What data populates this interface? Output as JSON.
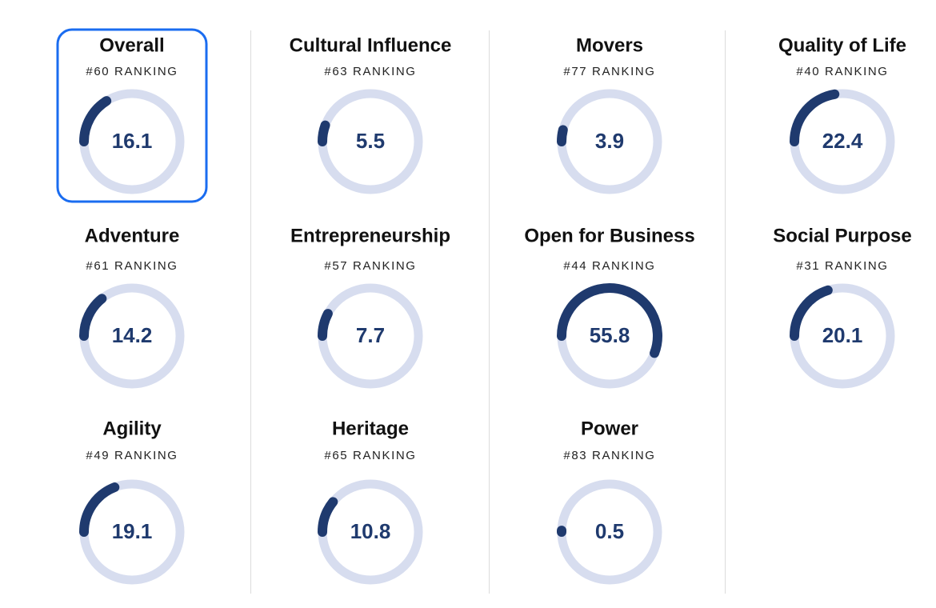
{
  "range": [
    0,
    100
  ],
  "cards": [
    {
      "title": "Overall",
      "ranking": "#60 RANKING",
      "score": 16.1
    },
    {
      "title": "Cultural Influence",
      "ranking": "#63 RANKING",
      "score": 5.5
    },
    {
      "title": "Movers",
      "ranking": "#77 RANKING",
      "score": 3.9
    },
    {
      "title": "Quality of Life",
      "ranking": "#40 RANKING",
      "score": 22.4
    },
    {
      "title": "Adventure",
      "ranking": "#61 RANKING",
      "score": 14.2
    },
    {
      "title": "Entrepreneurship",
      "ranking": "#57 RANKING",
      "score": 7.7
    },
    {
      "title": "Open for Business",
      "ranking": "#44 RANKING",
      "score": 55.8
    },
    {
      "title": "Social Purpose",
      "ranking": "#31 RANKING",
      "score": 20.1
    },
    {
      "title": "Agility",
      "ranking": "#49 RANKING",
      "score": 19.1
    },
    {
      "title": "Heritage",
      "ranking": "#65 RANKING",
      "score": 10.8
    },
    {
      "title": "Power",
      "ranking": "#83 RANKING",
      "score": 0.5
    }
  ]
}
